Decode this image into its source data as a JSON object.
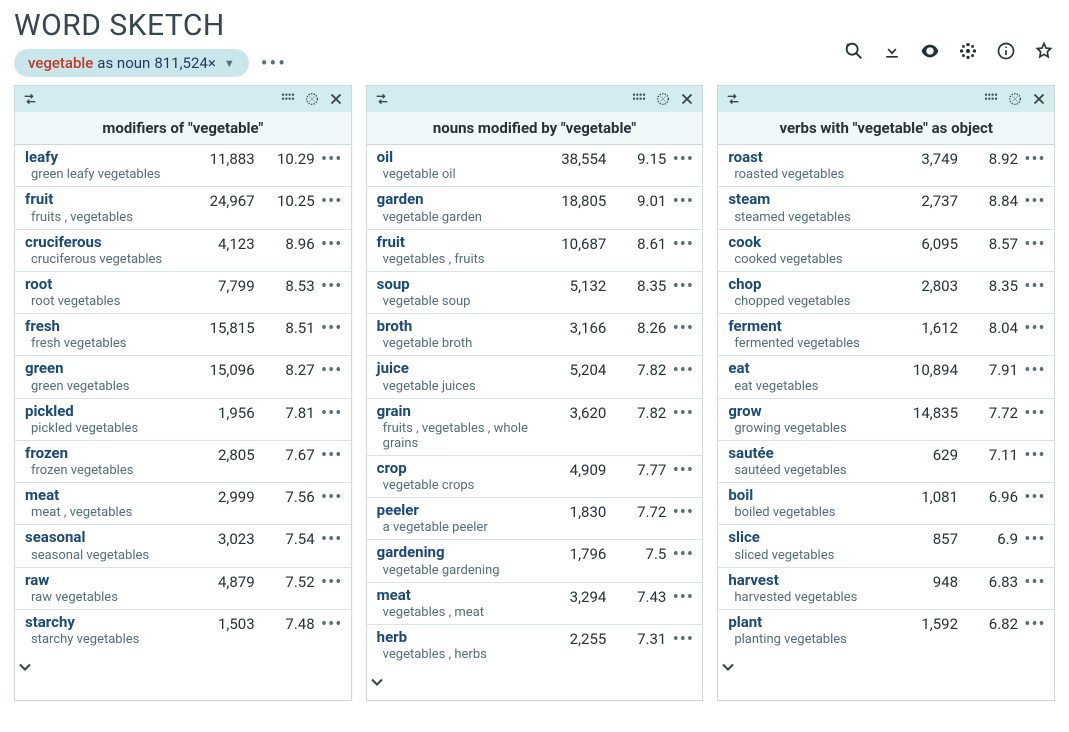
{
  "header": {
    "title": "WORD SKETCH",
    "lemma": "vegetable",
    "pos": "as noun",
    "freq": "811,524×"
  },
  "columns": [
    {
      "title": "modifiers of \"vegetable\"",
      "rows": [
        {
          "word": "leafy",
          "example": "green leafy vegetables",
          "freq": "11,883",
          "score": "10.29"
        },
        {
          "word": "fruit",
          "example": "fruits , vegetables",
          "freq": "24,967",
          "score": "10.25"
        },
        {
          "word": "cruciferous",
          "example": "cruciferous vegetables",
          "freq": "4,123",
          "score": "8.96"
        },
        {
          "word": "root",
          "example": "root vegetables",
          "freq": "7,799",
          "score": "8.53"
        },
        {
          "word": "fresh",
          "example": "fresh vegetables",
          "freq": "15,815",
          "score": "8.51"
        },
        {
          "word": "green",
          "example": "green vegetables",
          "freq": "15,096",
          "score": "8.27"
        },
        {
          "word": "pickled",
          "example": "pickled vegetables",
          "freq": "1,956",
          "score": "7.81"
        },
        {
          "word": "frozen",
          "example": "frozen vegetables",
          "freq": "2,805",
          "score": "7.67"
        },
        {
          "word": "meat",
          "example": "meat , vegetables",
          "freq": "2,999",
          "score": "7.56"
        },
        {
          "word": "seasonal",
          "example": "seasonal vegetables",
          "freq": "3,023",
          "score": "7.54"
        },
        {
          "word": "raw",
          "example": "raw vegetables",
          "freq": "4,879",
          "score": "7.52"
        },
        {
          "word": "starchy",
          "example": "starchy vegetables",
          "freq": "1,503",
          "score": "7.48"
        }
      ]
    },
    {
      "title": "nouns modified by \"vegetable\"",
      "rows": [
        {
          "word": "oil",
          "example": "vegetable oil",
          "freq": "38,554",
          "score": "9.15"
        },
        {
          "word": "garden",
          "example": "vegetable garden",
          "freq": "18,805",
          "score": "9.01"
        },
        {
          "word": "fruit",
          "example": "vegetables , fruits",
          "freq": "10,687",
          "score": "8.61"
        },
        {
          "word": "soup",
          "example": "vegetable soup",
          "freq": "5,132",
          "score": "8.35"
        },
        {
          "word": "broth",
          "example": "vegetable broth",
          "freq": "3,166",
          "score": "8.26"
        },
        {
          "word": "juice",
          "example": "vegetable juices",
          "freq": "5,204",
          "score": "7.82"
        },
        {
          "word": "grain",
          "example": "fruits , vegetables , whole grains",
          "freq": "3,620",
          "score": "7.82"
        },
        {
          "word": "crop",
          "example": "vegetable crops",
          "freq": "4,909",
          "score": "7.77"
        },
        {
          "word": "peeler",
          "example": "a vegetable peeler",
          "freq": "1,830",
          "score": "7.72"
        },
        {
          "word": "gardening",
          "example": "vegetable gardening",
          "freq": "1,796",
          "score": "7.5"
        },
        {
          "word": "meat",
          "example": "vegetables , meat",
          "freq": "3,294",
          "score": "7.43"
        },
        {
          "word": "herb",
          "example": "vegetables , herbs",
          "freq": "2,255",
          "score": "7.31"
        }
      ]
    },
    {
      "title": "verbs with \"vegetable\" as object",
      "rows": [
        {
          "word": "roast",
          "example": "roasted vegetables",
          "freq": "3,749",
          "score": "8.92"
        },
        {
          "word": "steam",
          "example": "steamed vegetables",
          "freq": "2,737",
          "score": "8.84"
        },
        {
          "word": "cook",
          "example": "cooked vegetables",
          "freq": "6,095",
          "score": "8.57"
        },
        {
          "word": "chop",
          "example": "chopped vegetables",
          "freq": "2,803",
          "score": "8.35"
        },
        {
          "word": "ferment",
          "example": "fermented vegetables",
          "freq": "1,612",
          "score": "8.04"
        },
        {
          "word": "eat",
          "example": "eat vegetables",
          "freq": "10,894",
          "score": "7.91"
        },
        {
          "word": "grow",
          "example": "growing vegetables",
          "freq": "14,835",
          "score": "7.72"
        },
        {
          "word": "sautée",
          "example": "sautéed vegetables",
          "freq": "629",
          "score": "7.11"
        },
        {
          "word": "boil",
          "example": "boiled vegetables",
          "freq": "1,081",
          "score": "6.96"
        },
        {
          "word": "slice",
          "example": "sliced vegetables",
          "freq": "857",
          "score": "6.9"
        },
        {
          "word": "harvest",
          "example": "harvested vegetables",
          "freq": "948",
          "score": "6.83"
        },
        {
          "word": "plant",
          "example": "planting vegetables",
          "freq": "1,592",
          "score": "6.82"
        }
      ]
    }
  ]
}
